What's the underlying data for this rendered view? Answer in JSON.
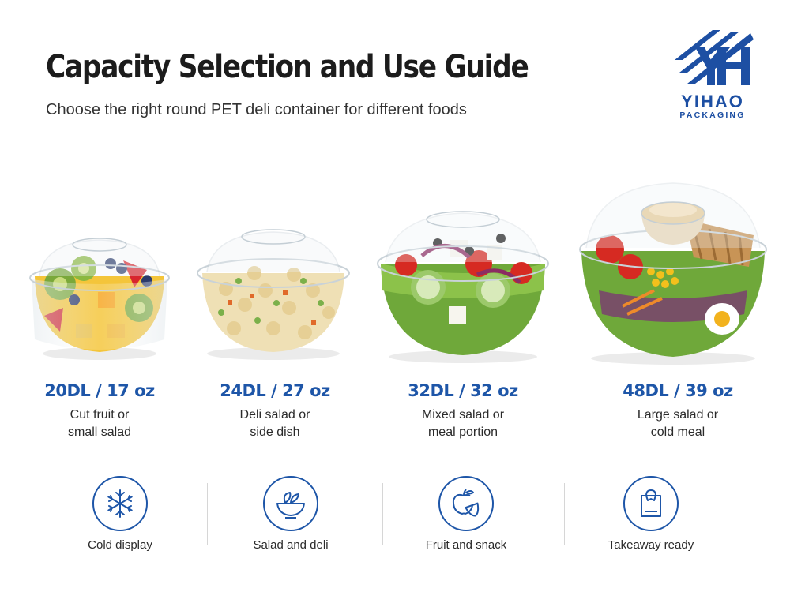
{
  "header": {
    "title": "Capacity Selection and Use Guide",
    "subtitle": "Choose the right round PET deli container for different foods"
  },
  "logo": {
    "brand": "YIHAO",
    "sub": "PACKAGING",
    "color": "#1d4fa3"
  },
  "products": [
    {
      "capacity": "20DL / 17 oz",
      "use_line1": "Cut fruit or",
      "use_line2": "small salad",
      "content": "fruit-mix"
    },
    {
      "capacity": "24DL / 27 oz",
      "use_line1": "Deli salad or",
      "use_line2": "side dish",
      "content": "pasta-salad"
    },
    {
      "capacity": "32DL / 32 oz",
      "use_line1": "Mixed salad or",
      "use_line2": "meal portion",
      "content": "greek-salad"
    },
    {
      "capacity": "48DL / 39 oz",
      "use_line1": "Large salad or",
      "use_line2": "cold meal",
      "content": "chicken-salad-with-dressing-cup"
    }
  ],
  "features": [
    {
      "label": "Cold display",
      "icon": "snowflake-icon"
    },
    {
      "label": "Salad and deli",
      "icon": "salad-bowl-icon"
    },
    {
      "label": "Fruit and snack",
      "icon": "apple-icon"
    },
    {
      "label": "Takeaway ready",
      "icon": "takeaway-bag-icon"
    }
  ],
  "colors": {
    "accent": "#1e56a8",
    "title": "#1c1c1c"
  }
}
